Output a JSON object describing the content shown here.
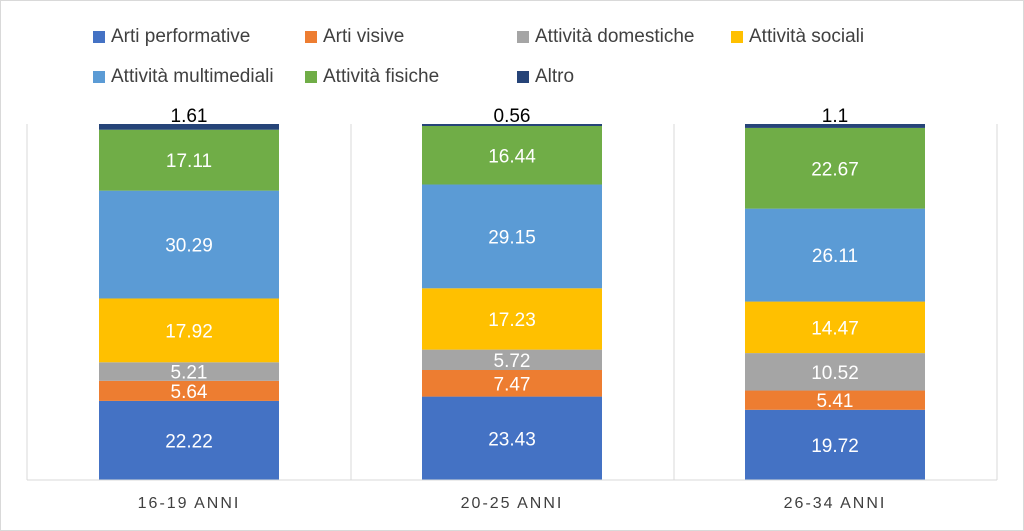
{
  "chart_data": {
    "type": "bar",
    "stacked": true,
    "title": "",
    "xlabel": "",
    "ylabel": "",
    "ylim": [
      0,
      100
    ],
    "grid": false,
    "legend_position": "top",
    "categories": [
      "16-19 ANNI",
      "20-25 ANNI",
      "26-34 ANNI"
    ],
    "series": [
      {
        "name": "Arti performative",
        "color": "#4472c4",
        "values": [
          22.22,
          23.43,
          19.72
        ]
      },
      {
        "name": "Arti visive",
        "color": "#ed7d31",
        "values": [
          5.64,
          7.47,
          5.41
        ]
      },
      {
        "name": "Attività domestiche",
        "color": "#a5a5a5",
        "values": [
          5.21,
          5.72,
          10.52
        ]
      },
      {
        "name": "Attività sociali",
        "color": "#ffc000",
        "values": [
          17.92,
          17.23,
          14.47
        ]
      },
      {
        "name": "Attività multimediali",
        "color": "#5b9bd5",
        "values": [
          30.29,
          29.15,
          26.11
        ]
      },
      {
        "name": "Attività fisiche",
        "color": "#70ad47",
        "values": [
          17.11,
          16.44,
          22.67
        ]
      },
      {
        "name": "Altro",
        "color": "#264478",
        "values": [
          1.61,
          0.56,
          1.1
        ]
      }
    ]
  }
}
